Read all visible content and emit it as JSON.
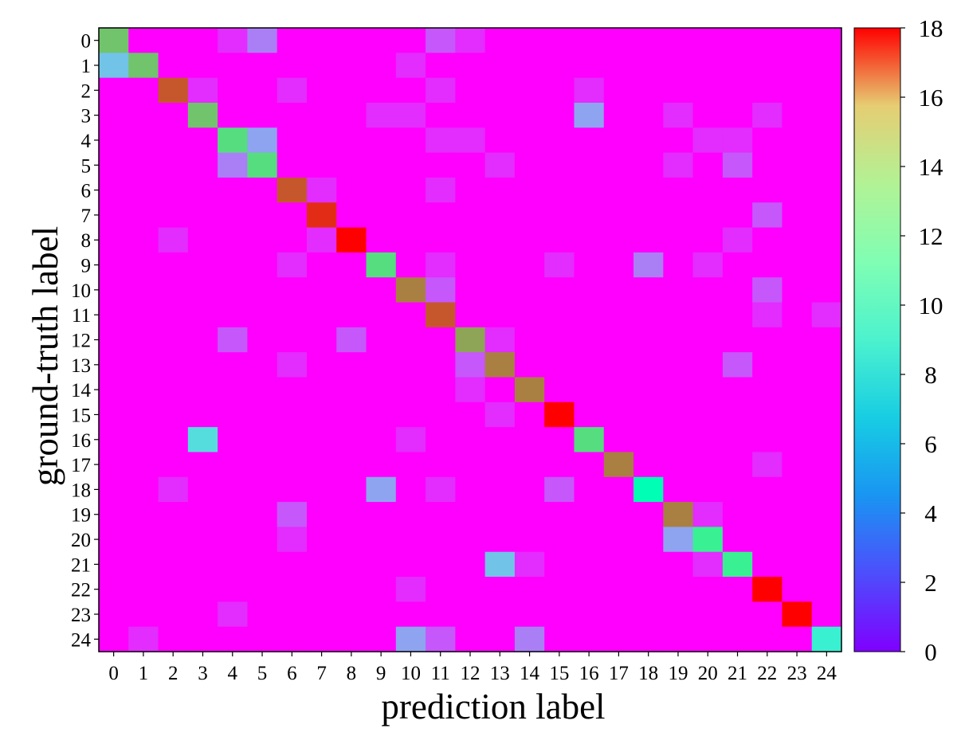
{
  "chart_data": {
    "type": "heatmap",
    "title": "",
    "xlabel": "prediction label",
    "ylabel": "ground-truth label",
    "x_categories": [
      "0",
      "1",
      "2",
      "3",
      "4",
      "5",
      "6",
      "7",
      "8",
      "9",
      "10",
      "11",
      "12",
      "13",
      "14",
      "15",
      "16",
      "17",
      "18",
      "19",
      "20",
      "21",
      "22",
      "23",
      "24"
    ],
    "y_categories": [
      "0",
      "1",
      "2",
      "3",
      "4",
      "5",
      "6",
      "7",
      "8",
      "9",
      "10",
      "11",
      "12",
      "13",
      "14",
      "15",
      "16",
      "17",
      "18",
      "19",
      "20",
      "21",
      "22",
      "23",
      "24"
    ],
    "colormap": "rainbow",
    "zlim": [
      0,
      18
    ],
    "colorbar_ticks": [
      0,
      2,
      4,
      6,
      8,
      10,
      12,
      14,
      16,
      18
    ],
    "values": [
      [
        13,
        0,
        0,
        0,
        1,
        3,
        0,
        0,
        0,
        0,
        0,
        2,
        1,
        0,
        0,
        0,
        0,
        0,
        0,
        0,
        0,
        0,
        0,
        0,
        0
      ],
      [
        5,
        13,
        0,
        0,
        0,
        0,
        0,
        0,
        0,
        0,
        1,
        0,
        0,
        0,
        0,
        0,
        0,
        0,
        0,
        0,
        0,
        0,
        0,
        0,
        0
      ],
      [
        0,
        0,
        16,
        1,
        0,
        0,
        1,
        0,
        0,
        0,
        0,
        1,
        0,
        0,
        0,
        0,
        1,
        0,
        0,
        0,
        0,
        0,
        0,
        0,
        0
      ],
      [
        0,
        0,
        0,
        13,
        0,
        0,
        0,
        0,
        0,
        1,
        1,
        0,
        0,
        0,
        0,
        0,
        4,
        0,
        0,
        1,
        0,
        0,
        1,
        0,
        0
      ],
      [
        0,
        0,
        0,
        0,
        12,
        4,
        0,
        0,
        0,
        0,
        0,
        1,
        1,
        0,
        0,
        0,
        0,
        0,
        0,
        0,
        1,
        1,
        0,
        0,
        0
      ],
      [
        0,
        0,
        0,
        0,
        3,
        12,
        0,
        0,
        0,
        0,
        0,
        0,
        0,
        1,
        0,
        0,
        0,
        0,
        0,
        1,
        0,
        2,
        0,
        0,
        0
      ],
      [
        0,
        0,
        0,
        0,
        0,
        0,
        16,
        1,
        0,
        0,
        0,
        1,
        0,
        0,
        0,
        0,
        0,
        0,
        0,
        0,
        0,
        0,
        0,
        0,
        0
      ],
      [
        0,
        0,
        0,
        0,
        0,
        0,
        0,
        17,
        0,
        0,
        0,
        0,
        0,
        0,
        0,
        0,
        0,
        0,
        0,
        0,
        0,
        0,
        2,
        0,
        0
      ],
      [
        0,
        0,
        1,
        0,
        0,
        0,
        0,
        1,
        18,
        0,
        0,
        0,
        0,
        0,
        0,
        0,
        0,
        0,
        0,
        0,
        0,
        1,
        0,
        0,
        0
      ],
      [
        0,
        0,
        0,
        0,
        0,
        0,
        1,
        0,
        0,
        12,
        0,
        1,
        0,
        0,
        0,
        1,
        0,
        0,
        3,
        0,
        1,
        0,
        0,
        0,
        0
      ],
      [
        0,
        0,
        0,
        0,
        0,
        0,
        0,
        0,
        0,
        0,
        15,
        2,
        0,
        0,
        0,
        0,
        0,
        0,
        0,
        0,
        0,
        0,
        2,
        0,
        0
      ],
      [
        0,
        0,
        0,
        0,
        0,
        0,
        0,
        0,
        0,
        0,
        0,
        16,
        0,
        0,
        0,
        0,
        0,
        0,
        0,
        0,
        0,
        0,
        1,
        0,
        1
      ],
      [
        0,
        0,
        0,
        0,
        2,
        0,
        0,
        0,
        2,
        0,
        0,
        0,
        14,
        1,
        0,
        0,
        0,
        0,
        0,
        0,
        0,
        0,
        0,
        0,
        0
      ],
      [
        0,
        0,
        0,
        0,
        0,
        0,
        1,
        0,
        0,
        0,
        0,
        0,
        2,
        15,
        0,
        0,
        0,
        0,
        0,
        0,
        0,
        2,
        0,
        0,
        0
      ],
      [
        0,
        0,
        0,
        0,
        0,
        0,
        0,
        0,
        0,
        0,
        0,
        0,
        1,
        0,
        15,
        0,
        0,
        0,
        0,
        0,
        0,
        0,
        0,
        0,
        0
      ],
      [
        0,
        0,
        0,
        0,
        0,
        0,
        0,
        0,
        0,
        0,
        0,
        0,
        0,
        1,
        0,
        18,
        0,
        0,
        0,
        0,
        0,
        0,
        0,
        0,
        0
      ],
      [
        0,
        0,
        0,
        6,
        0,
        0,
        0,
        0,
        0,
        0,
        1,
        0,
        0,
        0,
        0,
        0,
        12,
        0,
        0,
        0,
        0,
        0,
        0,
        0,
        0
      ],
      [
        0,
        0,
        0,
        0,
        0,
        0,
        0,
        0,
        0,
        0,
        0,
        0,
        0,
        0,
        0,
        0,
        0,
        15,
        0,
        0,
        0,
        0,
        1,
        0,
        0
      ],
      [
        0,
        0,
        1,
        0,
        0,
        0,
        0,
        0,
        0,
        4,
        0,
        1,
        0,
        0,
        0,
        2,
        0,
        0,
        9,
        0,
        0,
        0,
        0,
        0,
        0
      ],
      [
        0,
        0,
        0,
        0,
        0,
        0,
        2,
        0,
        0,
        0,
        0,
        0,
        0,
        0,
        0,
        0,
        0,
        0,
        0,
        15,
        1,
        0,
        0,
        0,
        0
      ],
      [
        0,
        0,
        0,
        0,
        0,
        0,
        1,
        0,
        0,
        0,
        0,
        0,
        0,
        0,
        0,
        0,
        0,
        0,
        0,
        4,
        11,
        0,
        0,
        0,
        0
      ],
      [
        0,
        0,
        0,
        0,
        0,
        0,
        0,
        0,
        0,
        0,
        0,
        0,
        0,
        5,
        1,
        0,
        0,
        0,
        0,
        0,
        1,
        11,
        0,
        0,
        0
      ],
      [
        0,
        0,
        0,
        0,
        0,
        0,
        0,
        0,
        0,
        0,
        1,
        0,
        0,
        0,
        0,
        0,
        0,
        0,
        0,
        0,
        0,
        0,
        18,
        0,
        0
      ],
      [
        0,
        0,
        0,
        0,
        1,
        0,
        0,
        0,
        0,
        0,
        0,
        0,
        0,
        0,
        0,
        0,
        0,
        0,
        0,
        0,
        0,
        0,
        0,
        18,
        0
      ],
      [
        0,
        1,
        0,
        0,
        0,
        0,
        0,
        0,
        0,
        0,
        4,
        2,
        0,
        0,
        3,
        0,
        0,
        0,
        0,
        0,
        0,
        0,
        0,
        0,
        7
      ]
    ]
  }
}
